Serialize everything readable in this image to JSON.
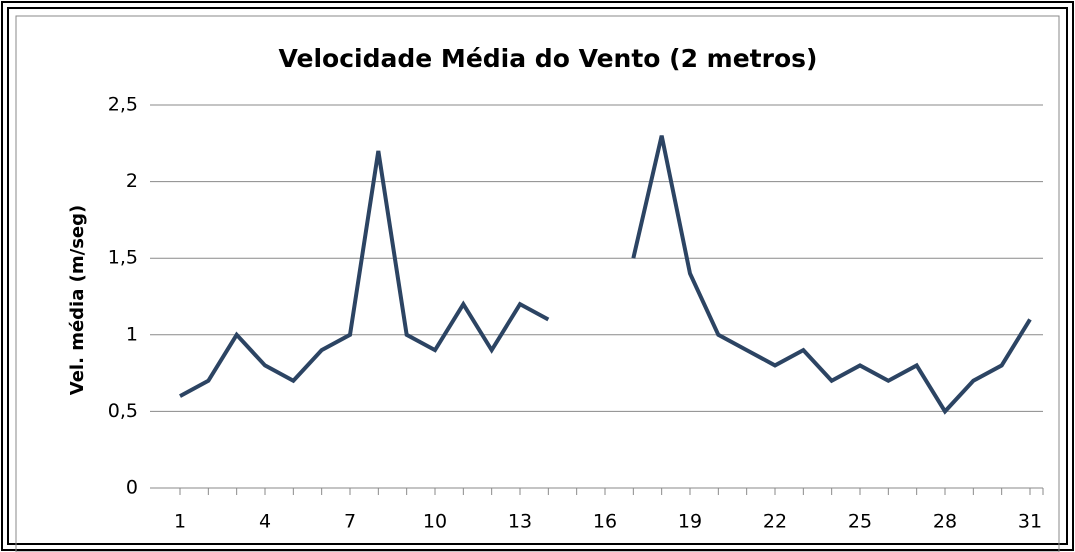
{
  "chart_data": {
    "type": "line",
    "title": "Velocidade Média do Vento (2 metros)",
    "y_label": "Vel. média (m/seg)",
    "categories": [
      "1",
      null,
      null,
      "4",
      null,
      null,
      "7",
      null,
      null,
      "10",
      null,
      null,
      "13",
      null,
      null,
      "16",
      null,
      null,
      "19",
      null,
      null,
      "22",
      null,
      null,
      "25",
      null,
      null,
      "28",
      null,
      null,
      "31"
    ],
    "series": [
      {
        "name": "Velocidade",
        "color": "#2c4463",
        "values": [
          0.6,
          0.7,
          1.0,
          0.8,
          0.7,
          0.9,
          1.0,
          2.2,
          1.0,
          0.9,
          1.2,
          0.9,
          1.2,
          1.1,
          null,
          null,
          1.5,
          2.3,
          1.4,
          1.0,
          0.9,
          0.8,
          0.9,
          0.7,
          0.8,
          0.7,
          0.8,
          0.5,
          0.7,
          0.8,
          1.1
        ]
      }
    ],
    "ylim": [
      0,
      2.5
    ],
    "yticks": [
      0,
      {
        "value": 0.5,
        "label": "0,5"
      },
      1,
      {
        "value": 1.5,
        "label": "1,5"
      },
      2,
      {
        "value": 2.5,
        "label": "2,5"
      }
    ],
    "grid": true
  }
}
